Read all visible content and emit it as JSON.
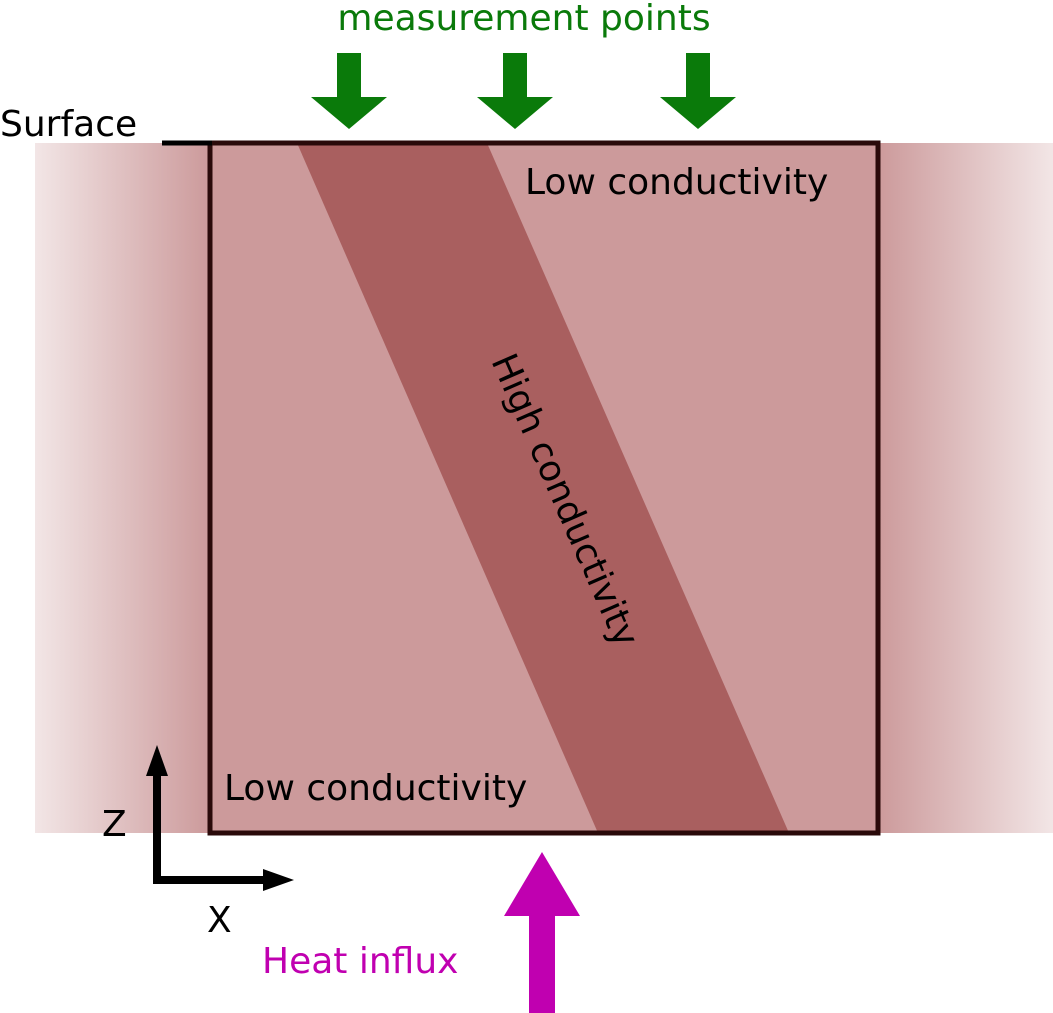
{
  "labels": {
    "measurement_points": "measurement points",
    "surface": "Surface",
    "low_conductivity_top": "Low conductivity",
    "low_conductivity_bottom": "Low conductivity",
    "high_conductivity": "High conductivity",
    "heat_influx": "Heat influx",
    "axis_z": "Z",
    "axis_x": "X"
  },
  "colors": {
    "measurement_arrow": "#0a7a0a",
    "measurement_text": "#0a7a0a",
    "heat_arrow": "#c000b0",
    "heat_text": "#c000b0",
    "low_conductivity_fill": "#cc9a9b",
    "high_conductivity_fill": "#a95f5f",
    "domain_border": "#2a0a0a",
    "axis": "#000000"
  },
  "icons": {
    "measurement_arrow": "arrow-down-icon",
    "heat_arrow": "arrow-up-icon",
    "z_axis_arrow": "arrow-up-icon",
    "x_axis_arrow": "arrow-right-icon"
  },
  "measurement_point_count": 3
}
